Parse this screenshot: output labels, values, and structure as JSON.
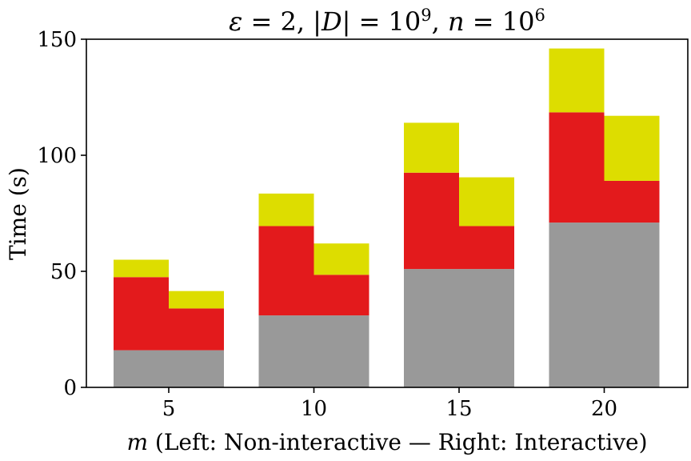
{
  "chart_data": {
    "type": "bar",
    "stacked": true,
    "title": "ε = 2, |D| = 10^9, n = 10^6",
    "title_parts": {
      "eps": "ε",
      "eq1": " = 2, |",
      "D": "D",
      "eq2": "| = 10",
      "exp1": "9",
      "sep": ", ",
      "n": "n",
      "eq3": " = 10",
      "exp2": "6"
    },
    "xlabel": "m (Left: Non-interactive — Right: Interactive)",
    "xlabel_parts": {
      "m": "m",
      "rest": " (Left: Non-interactive — Right: Interactive)"
    },
    "ylabel": "Time (s)",
    "ylim": [
      0,
      150
    ],
    "yticks": [
      0,
      50,
      100,
      150
    ],
    "categories": [
      "5",
      "10",
      "15",
      "20"
    ],
    "groups": [
      "Non-interactive",
      "Interactive"
    ],
    "segment_colors": [
      "#999999",
      "#e31a1c",
      "#dddd00"
    ],
    "bars": [
      {
        "category": "5",
        "group": "Non-interactive",
        "segments": [
          16,
          31.5,
          7.5
        ]
      },
      {
        "category": "5",
        "group": "Interactive",
        "segments": [
          16,
          18,
          7.5
        ]
      },
      {
        "category": "10",
        "group": "Non-interactive",
        "segments": [
          31,
          38.5,
          14
        ]
      },
      {
        "category": "10",
        "group": "Interactive",
        "segments": [
          31,
          17.5,
          13.5
        ]
      },
      {
        "category": "15",
        "group": "Non-interactive",
        "segments": [
          51,
          41.5,
          21.5
        ]
      },
      {
        "category": "15",
        "group": "Interactive",
        "segments": [
          51,
          18.5,
          21
        ]
      },
      {
        "category": "20",
        "group": "Non-interactive",
        "segments": [
          71,
          47.5,
          27.5
        ]
      },
      {
        "category": "20",
        "group": "Interactive",
        "segments": [
          71,
          18,
          28
        ]
      }
    ]
  }
}
